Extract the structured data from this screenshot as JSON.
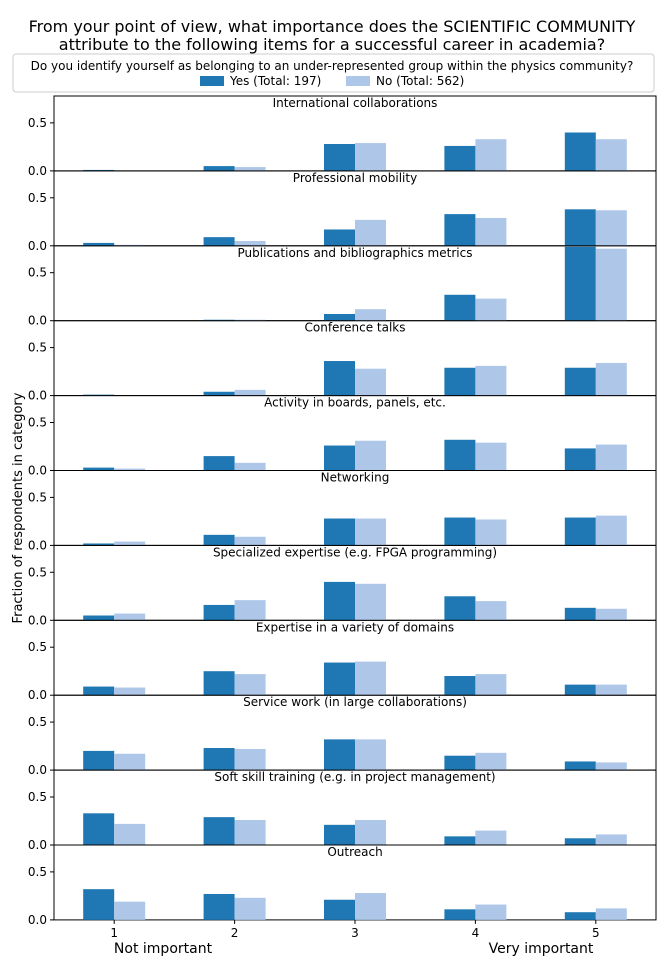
{
  "title_line1": "From your point of view, what importance does the SCIENTIFIC COMMUNITY",
  "title_line2": "attribute to the following items for a successful career in academia?",
  "legend": {
    "title": "Do you identify yourself as belonging to an under-represented group within the physics community?",
    "entries": [
      "Yes (Total: 197)",
      "No (Total: 562)"
    ]
  },
  "colors": {
    "yes": "#1f77b4",
    "no": "#aec7e8"
  },
  "chart_data": {
    "type": "bar",
    "ylabel": "Fraction of respondents in category",
    "categories": [
      "1",
      "2",
      "3",
      "4",
      "5"
    ],
    "x_extremes": {
      "left": "Not important",
      "right": "Very important"
    },
    "ylim": [
      0,
      0.78
    ],
    "yticks": [
      "0.0",
      "0.5"
    ],
    "series_names": [
      "Yes (Total: 197)",
      "No (Total: 562)"
    ],
    "panels": [
      {
        "title": "International collaborations",
        "yes": [
          0.01,
          0.05,
          0.28,
          0.26,
          0.4
        ],
        "no": [
          0.0,
          0.04,
          0.29,
          0.33,
          0.33
        ]
      },
      {
        "title": "Professional mobility",
        "yes": [
          0.03,
          0.09,
          0.17,
          0.33,
          0.38
        ],
        "no": [
          0.01,
          0.05,
          0.27,
          0.29,
          0.37
        ]
      },
      {
        "title": "Publications and bibliographics metrics",
        "yes": [
          0.0,
          0.01,
          0.07,
          0.27,
          0.77
        ],
        "no": [
          0.0,
          0.01,
          0.12,
          0.23,
          0.75
        ]
      },
      {
        "title": "Conference talks",
        "yes": [
          0.01,
          0.04,
          0.36,
          0.29,
          0.29
        ],
        "no": [
          0.0,
          0.06,
          0.28,
          0.31,
          0.34
        ]
      },
      {
        "title": "Activity in boards, panels, etc.",
        "yes": [
          0.03,
          0.15,
          0.26,
          0.32,
          0.23
        ],
        "no": [
          0.02,
          0.08,
          0.31,
          0.29,
          0.27
        ]
      },
      {
        "title": "Networking",
        "yes": [
          0.02,
          0.11,
          0.28,
          0.29,
          0.29
        ],
        "no": [
          0.04,
          0.09,
          0.28,
          0.27,
          0.31
        ]
      },
      {
        "title": "Specialized expertise (e.g. FPGA programming)",
        "yes": [
          0.05,
          0.16,
          0.4,
          0.25,
          0.13
        ],
        "no": [
          0.07,
          0.21,
          0.38,
          0.2,
          0.12
        ]
      },
      {
        "title": "Expertise in a variety of domains",
        "yes": [
          0.09,
          0.25,
          0.34,
          0.2,
          0.11
        ],
        "no": [
          0.08,
          0.22,
          0.35,
          0.22,
          0.11
        ]
      },
      {
        "title": "Service work (in large collaborations)",
        "yes": [
          0.2,
          0.23,
          0.32,
          0.15,
          0.09
        ],
        "no": [
          0.17,
          0.22,
          0.32,
          0.18,
          0.08
        ]
      },
      {
        "title": "Soft skill training (e.g. in project management)",
        "yes": [
          0.33,
          0.29,
          0.21,
          0.09,
          0.07
        ],
        "no": [
          0.22,
          0.26,
          0.26,
          0.15,
          0.11
        ]
      },
      {
        "title": "Outreach",
        "yes": [
          0.32,
          0.27,
          0.21,
          0.11,
          0.08
        ],
        "no": [
          0.19,
          0.23,
          0.28,
          0.16,
          0.12
        ]
      }
    ]
  }
}
